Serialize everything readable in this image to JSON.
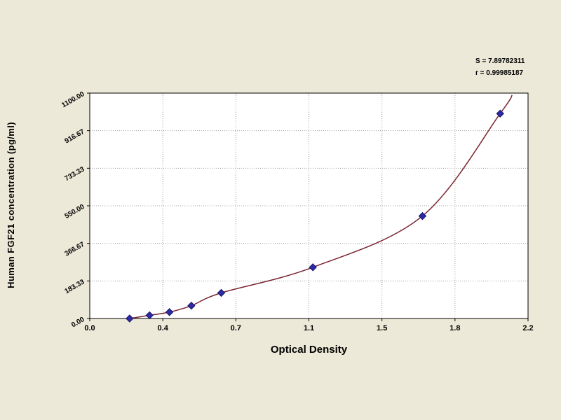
{
  "window": {
    "background_color": "#ece9d8"
  },
  "chart_data": {
    "type": "scatter",
    "title": "",
    "xlabel": "Optical Density",
    "ylabel": "Human FGF21 concentration (pg/ml)",
    "xlim": [
      0.0,
      2.2
    ],
    "ylim": [
      0.0,
      1100.0
    ],
    "grid": "dotted",
    "legend": "none",
    "x_tick_labels": [
      "0.0",
      "0.4",
      "0.7",
      "1.1",
      "1.5",
      "1.8",
      "2.2"
    ],
    "y_tick_labels": [
      "0.00",
      "183.33",
      "366.67",
      "550.00",
      "733.33",
      "916.67",
      "1100.00"
    ],
    "points": {
      "optical_density": [
        0.2,
        0.3,
        0.4,
        0.51,
        0.66,
        1.12,
        1.67,
        2.06
      ],
      "concentration": [
        0,
        15.6,
        31.2,
        62.5,
        125,
        250,
        500,
        1000
      ]
    },
    "curve_extension": {
      "start": {
        "x": 0.18,
        "y": 0
      },
      "end": {
        "x": 2.12,
        "y": 1090
      }
    },
    "annotation": {
      "line1": "S = 7.89782311",
      "line2": "r = 0.99985187"
    },
    "colors": {
      "curve": "#7b2633",
      "marker": "#2d2aa5",
      "marker_edge": "#1a1766",
      "plot_background": "#ffffff",
      "grid": "#a0a0a0",
      "axis": "#000000",
      "text": "#000000"
    }
  }
}
